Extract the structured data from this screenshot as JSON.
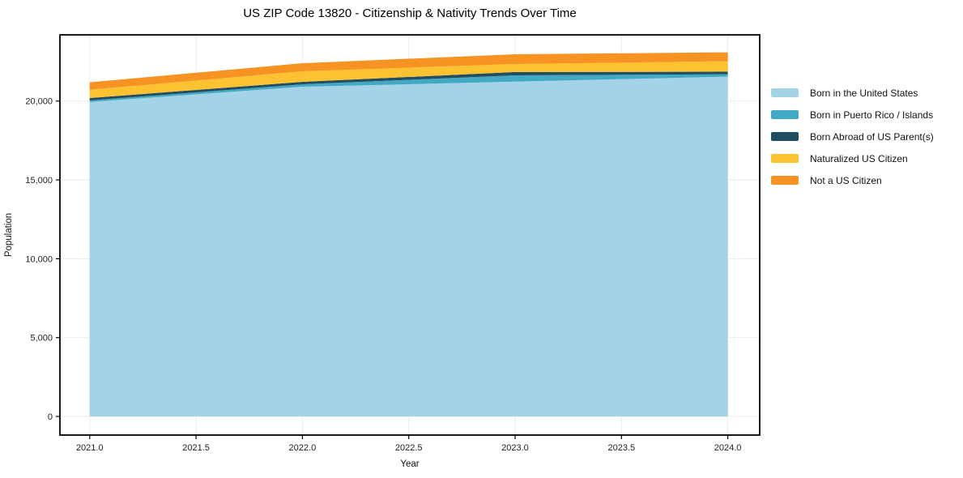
{
  "title": "US ZIP Code 13820 - Citizenship & Nativity Trends Over Time",
  "chart_data": {
    "type": "area",
    "stacked": true,
    "title": "US ZIP Code 13820 - Citizenship & Nativity Trends Over Time",
    "xlabel": "Year",
    "ylabel": "Population",
    "x": [
      2021,
      2022,
      2023,
      2024
    ],
    "series": [
      {
        "name": "Born in the United States",
        "color": "#a4d2e6",
        "values": [
          19940,
          20910,
          21230,
          21550
        ]
      },
      {
        "name": "Born in Puerto Rico / Islands",
        "color": "#42a9c5",
        "values": [
          100,
          150,
          400,
          150
        ]
      },
      {
        "name": "Born Abroad of US Parent(s)",
        "color": "#224e61",
        "values": [
          150,
          160,
          210,
          160
        ]
      },
      {
        "name": "Naturalized US Citizen",
        "color": "#fcc231",
        "values": [
          530,
          670,
          510,
          670
        ]
      },
      {
        "name": "Not a US Citizen",
        "color": "#f79322",
        "values": [
          470,
          510,
          620,
          560
        ]
      }
    ],
    "stack_totals": [
      21190,
      22400,
      22970,
      23090
    ],
    "xlim": [
      2020.86,
      2024.15
    ],
    "ylim": [
      -1180,
      24200
    ],
    "xticks": {
      "values": [
        2021.0,
        2021.5,
        2022.0,
        2022.5,
        2023.0,
        2023.5,
        2024.0
      ],
      "labels": [
        "2021.0",
        "2021.5",
        "2022.0",
        "2022.5",
        "2023.0",
        "2023.5",
        "2024.0"
      ]
    },
    "yticks": {
      "values": [
        0,
        5000,
        10000,
        15000,
        20000
      ],
      "labels": [
        "0",
        "5,000",
        "10,000",
        "15,000",
        "20,000"
      ]
    },
    "grid": true,
    "legend_position": "right of plot, top"
  }
}
